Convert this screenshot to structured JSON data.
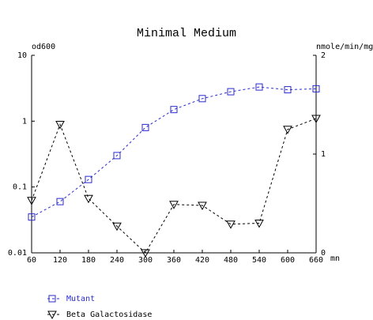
{
  "chart_data": {
    "type": "line",
    "title": "Minimal Medium",
    "y_label": "od600",
    "y2_label": "nmole/min/mg",
    "x_label": "mn",
    "x": [
      60,
      120,
      180,
      240,
      300,
      360,
      420,
      480,
      540,
      600,
      660
    ],
    "xlim": [
      60,
      660
    ],
    "xticks": [
      60,
      120,
      180,
      240,
      300,
      360,
      420,
      480,
      540,
      600,
      660
    ],
    "ylim": [
      0.01,
      10
    ],
    "yticks": [
      0.01,
      0.1,
      1,
      10
    ],
    "y_log": true,
    "y2lim": [
      0,
      2
    ],
    "y2ticks": [
      0,
      1,
      2
    ],
    "series": [
      {
        "name": "Mutant",
        "color": "#2b2bd0",
        "marker": "square",
        "values": [
          0.035,
          0.06,
          0.13,
          0.3,
          0.8,
          1.5,
          2.2,
          2.8,
          3.3,
          3.0,
          3.1
        ]
      },
      {
        "name": "Beta Galactosidase",
        "color": "#000000",
        "marker": "triangle",
        "axis": "y2",
        "values": [
          0.53,
          1.3,
          0.55,
          0.27,
          0,
          0.49,
          0.48,
          0.29,
          0.3,
          1.25,
          1.36
        ]
      }
    ]
  }
}
